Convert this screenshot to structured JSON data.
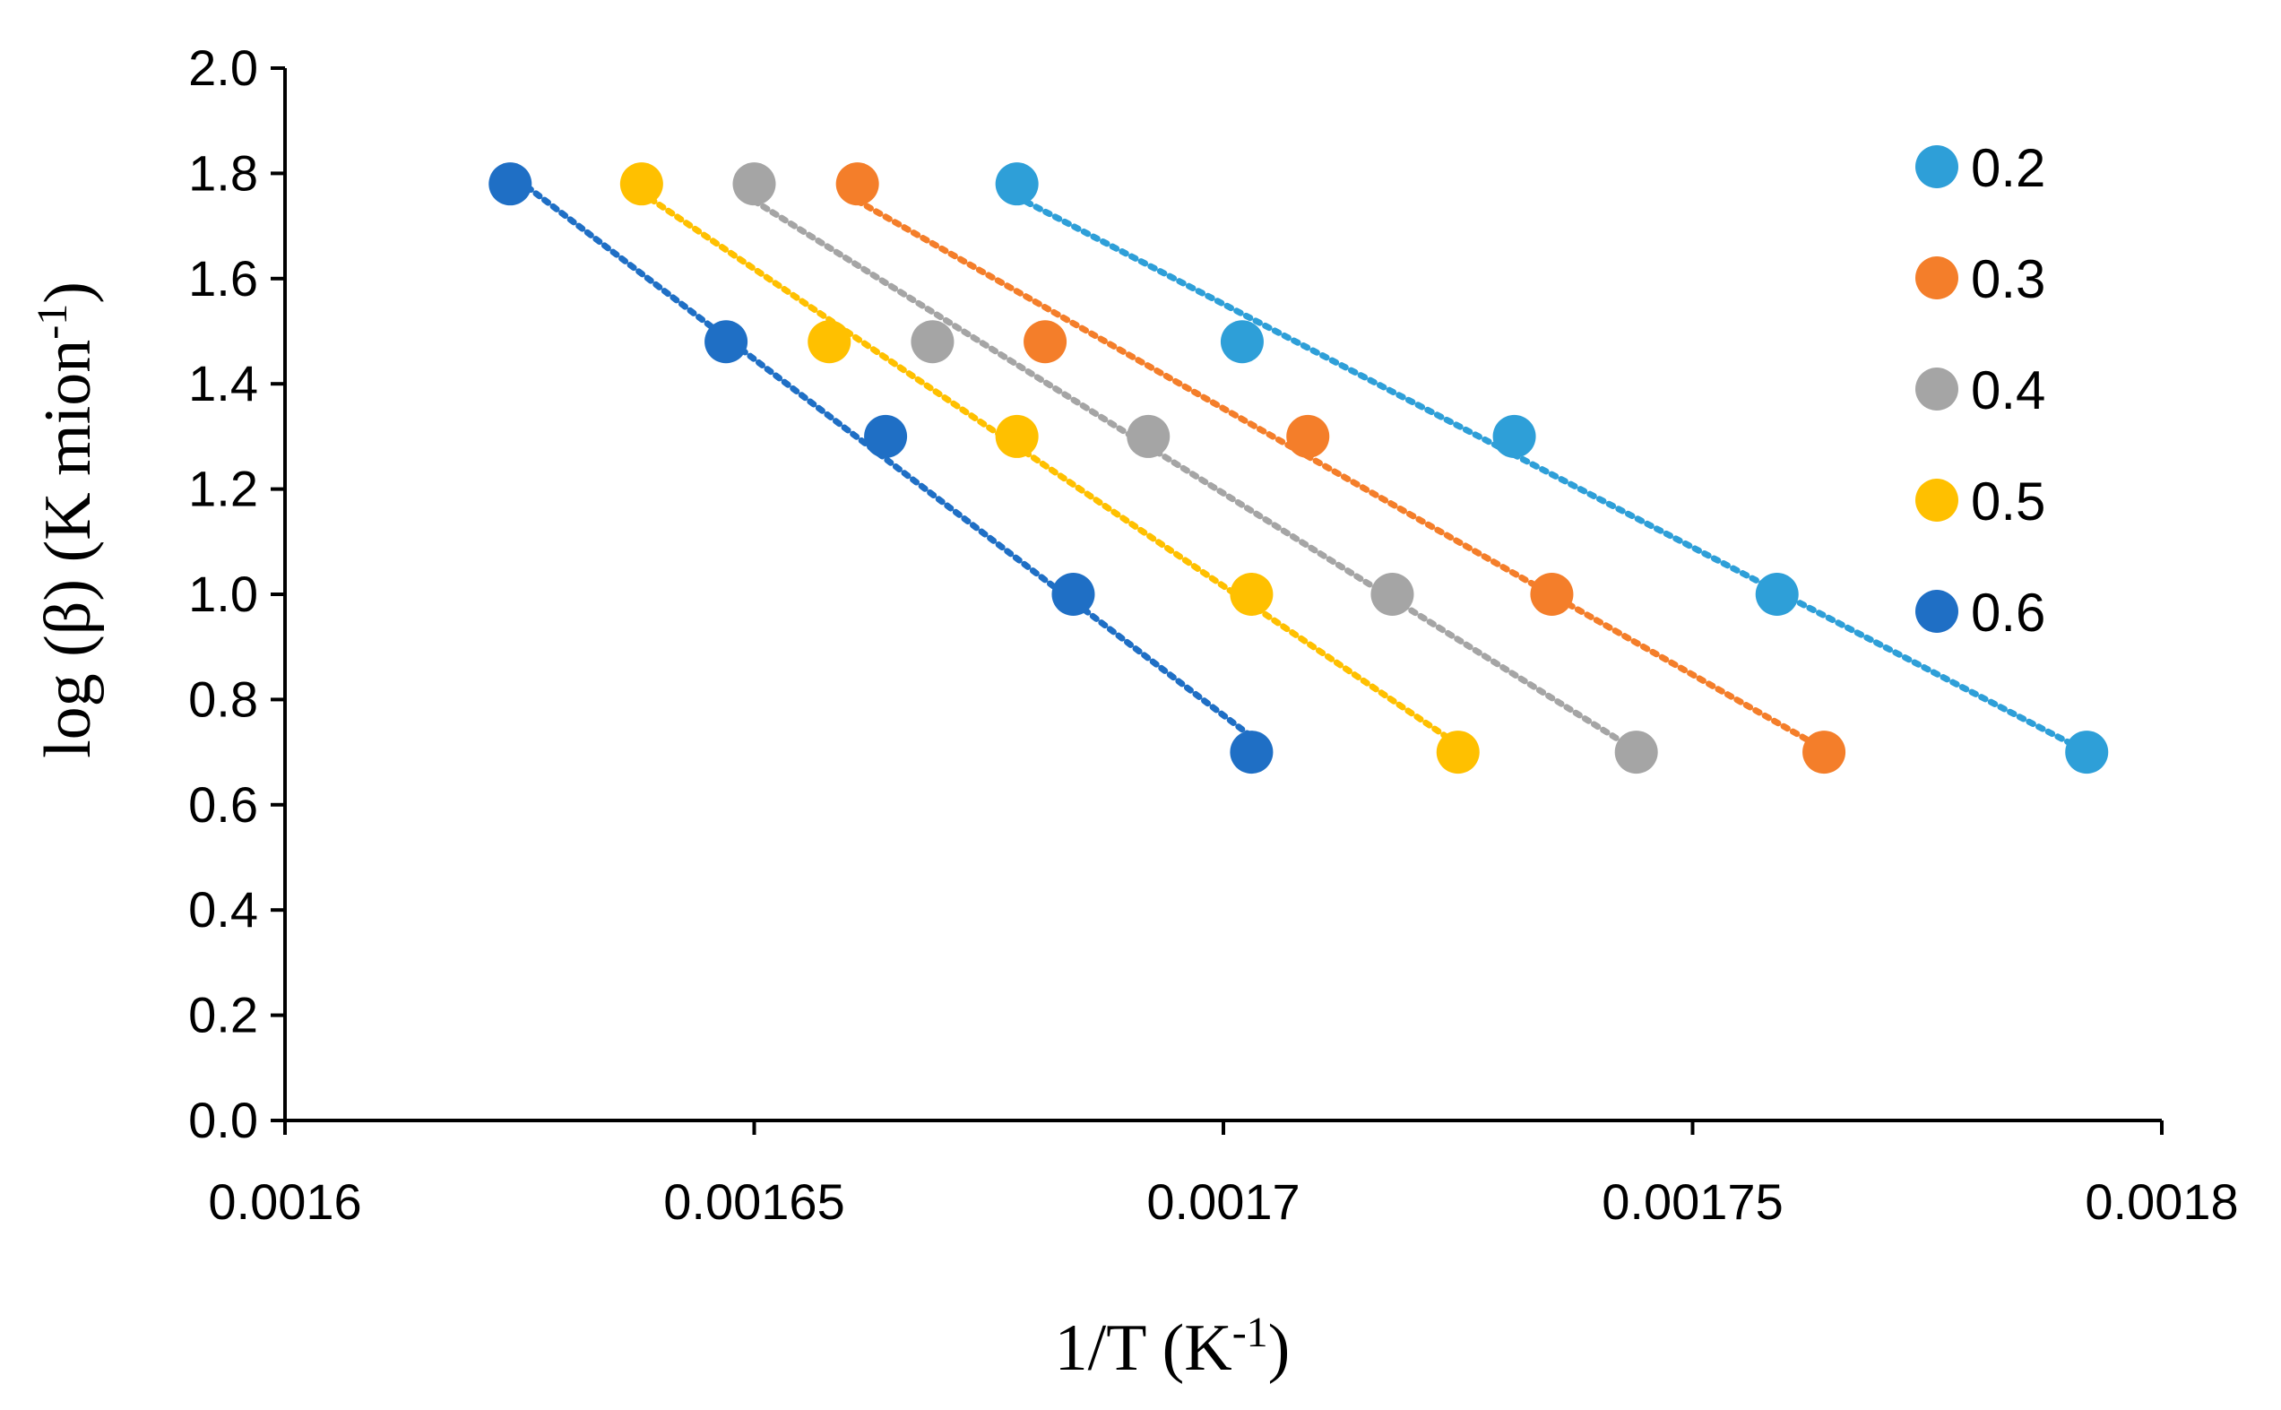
{
  "chart_data": {
    "type": "scatter",
    "title": "",
    "xlabel": {
      "base": "1/T (K",
      "sup": "-1",
      "end": ")"
    },
    "ylabel": {
      "base": "log (β) (K mion",
      "sup": "-1",
      "end": ")"
    },
    "xlim": [
      0.0016,
      0.0018
    ],
    "ylim": [
      0.0,
      2.0
    ],
    "x_ticks": [
      0.0016,
      0.00165,
      0.0017,
      0.00175,
      0.0018
    ],
    "x_tick_labels": [
      "0.0016",
      "0.00165",
      "0.0017",
      "0.00175",
      "0.0018"
    ],
    "y_ticks": [
      0,
      0.2,
      0.4,
      0.6,
      0.8,
      1.0,
      1.2,
      1.4,
      1.6,
      1.8,
      2.0
    ],
    "y_tick_labels": [
      "0.0",
      "0.2",
      "0.4",
      "0.6",
      "0.8",
      "1.0",
      "1.2",
      "1.4",
      "1.6",
      "1.8",
      "2.0"
    ],
    "grid": false,
    "legend_position": "right",
    "trendline": "linear, dotted",
    "series": [
      {
        "name": "0.2",
        "color": "#2E9FD8",
        "x": [
          0.001678,
          0.001702,
          0.001731,
          0.001759,
          0.001792
        ],
        "y": [
          1.78,
          1.48,
          1.3,
          1.0,
          0.7
        ]
      },
      {
        "name": "0.3",
        "color": "#F47E2A",
        "x": [
          0.001661,
          0.001681,
          0.001709,
          0.001735,
          0.001764
        ],
        "y": [
          1.78,
          1.48,
          1.3,
          1.0,
          0.7
        ]
      },
      {
        "name": "0.4",
        "color": "#A5A5A5",
        "x": [
          0.00165,
          0.001669,
          0.001692,
          0.001718,
          0.001744
        ],
        "y": [
          1.78,
          1.48,
          1.3,
          1.0,
          0.7
        ]
      },
      {
        "name": "0.5",
        "color": "#FFC000",
        "x": [
          0.001638,
          0.001658,
          0.001678,
          0.001703,
          0.001725
        ],
        "y": [
          1.78,
          1.48,
          1.3,
          1.0,
          0.7
        ]
      },
      {
        "name": "0.6",
        "color": "#1F6FC5",
        "x": [
          0.001624,
          0.001647,
          0.001664,
          0.001684,
          0.001703
        ],
        "y": [
          1.78,
          1.48,
          1.3,
          1.0,
          0.7
        ]
      }
    ]
  }
}
